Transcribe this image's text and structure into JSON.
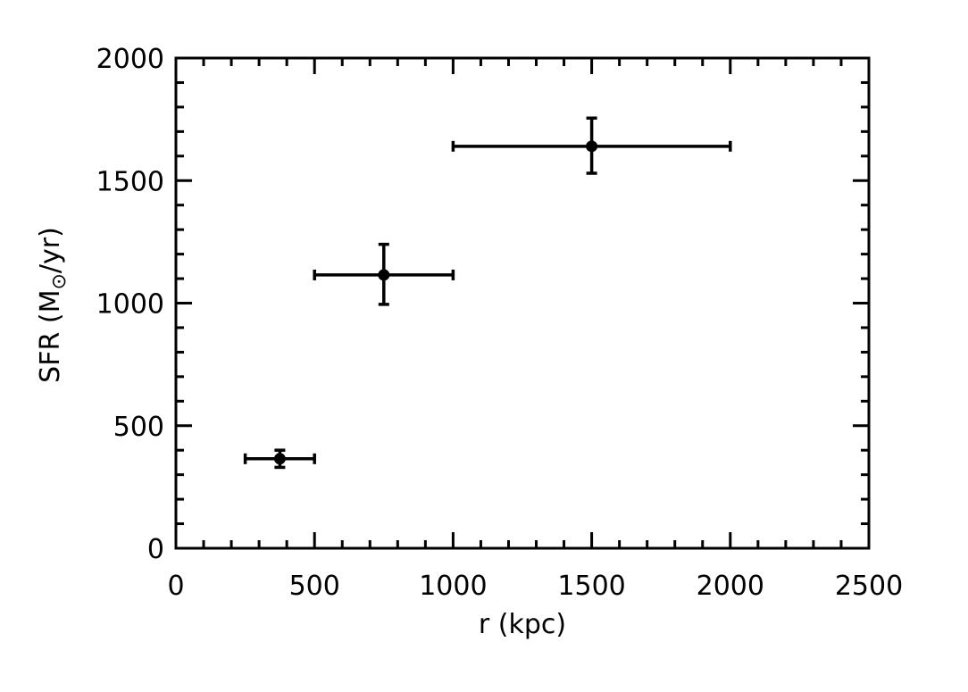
{
  "chart_data": {
    "type": "scatter",
    "xlabel": "r (kpc)",
    "ylabel_prefix": "SFR (M",
    "ylabel_suffix": "/yr)",
    "xlim": [
      0,
      2500
    ],
    "ylim": [
      0,
      2000
    ],
    "x_ticks": [
      "0",
      "500",
      "1000",
      "1500",
      "2000",
      "2500"
    ],
    "y_ticks": [
      "0",
      "500",
      "1000",
      "1500",
      "2000"
    ],
    "grid": false,
    "series": [
      {
        "points": [
          {
            "x": 375,
            "y": 365,
            "xerr_low": 250,
            "xerr_high": 500,
            "yerr_low": 330,
            "yerr_high": 400
          },
          {
            "x": 750,
            "y": 1115,
            "xerr_low": 500,
            "xerr_high": 1000,
            "yerr_low": 995,
            "yerr_high": 1240
          },
          {
            "x": 1500,
            "y": 1640,
            "xerr_low": 1000,
            "xerr_high": 2000,
            "yerr_low": 1530,
            "yerr_high": 1755
          }
        ]
      }
    ],
    "color": "#000000"
  }
}
